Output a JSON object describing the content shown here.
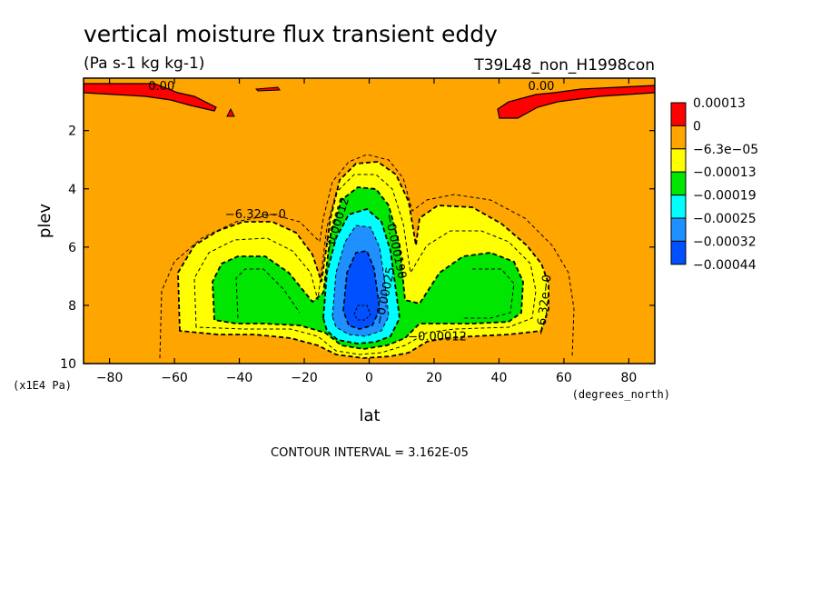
{
  "chart_data": {
    "type": "heatmap",
    "title": "vertical moisture flux transient eddy",
    "units": "(Pa s-1 kg kg-1)",
    "run_label": "T39L48_non_H1998con",
    "xlabel": "lat",
    "x_unit": "(degrees_north)",
    "ylabel": "plev",
    "y_unit": "(x1E4 Pa)",
    "xlim": [
      -88,
      88
    ],
    "ylim": [
      0.2,
      10
    ],
    "y_reversed": true,
    "x_ticks": [
      -80,
      -60,
      -40,
      -20,
      0,
      20,
      40,
      60,
      80
    ],
    "x_tick_labels": [
      "−80",
      "−60",
      "−40",
      "−20",
      "0",
      "20",
      "40",
      "60",
      "80"
    ],
    "y_ticks": [
      2,
      4,
      6,
      8,
      10
    ],
    "y_tick_labels": [
      "2",
      "4",
      "6",
      "8",
      "10"
    ],
    "contour_interval": "CONTOUR INTERVAL = 3.162E-05",
    "legend": {
      "placement": "right",
      "levels": [
        "0.00013",
        "0",
        "−6.3e−05",
        "−0.00013",
        "−0.00019",
        "−0.00025",
        "−0.00032",
        "−0.00044"
      ],
      "colors": [
        "#ff0000",
        "#ffa500",
        "#ffff00",
        "#00e600",
        "#00ffff",
        "#1e90ff",
        "#0050ff"
      ]
    },
    "contour_labels": [
      {
        "text": "0.00",
        "lat": -64,
        "plev": 0.6
      },
      {
        "text": "0.00",
        "lat": 53,
        "plev": 0.6
      },
      {
        "text": "−6.32e−0",
        "lat": -35,
        "plev": 5.0
      },
      {
        "text": "−6.32e−0",
        "lat": 55,
        "plev": 8.0
      },
      {
        "text": "−0.00012",
        "lat": -9,
        "plev": 5.3
      },
      {
        "text": "−0.000190",
        "lat": 7,
        "plev": 6.0
      },
      {
        "text": "−0.00025",
        "lat": 6,
        "plev": 7.7
      },
      {
        "text": "−0.00012",
        "lat": 21,
        "plev": 9.2
      }
    ],
    "regions": [
      {
        "class": "0 to 0.00013",
        "color": "#ff0000",
        "note": "upper-level bands near plev 0.3–1.0 at high latitudes"
      },
      {
        "class": "−6.3e−05 to 0",
        "color": "#ffa500"
      },
      {
        "class": "−0.00013 to −6.3e−05",
        "color": "#ffff00"
      },
      {
        "class": "−0.00019 to −0.00013",
        "color": "#00e600"
      },
      {
        "class": "−0.00025 to −0.00019",
        "color": "#00ffff"
      },
      {
        "class": "−0.00032 to −0.00025",
        "color": "#1e90ff"
      },
      {
        "class": "−0.00044 to −0.00032",
        "color": "#0050ff"
      }
    ]
  }
}
